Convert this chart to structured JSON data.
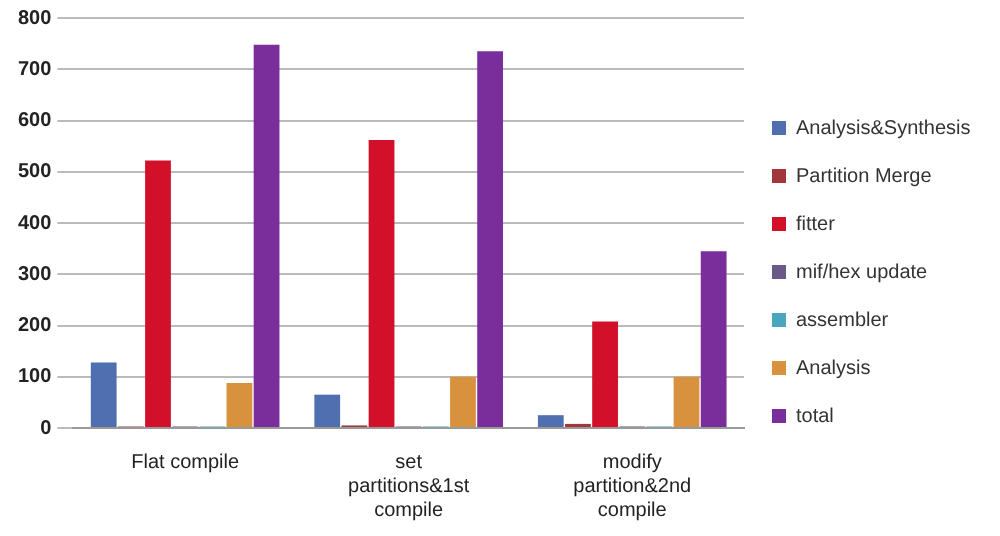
{
  "chart_data": {
    "type": "bar",
    "categories": [
      "Flat compile",
      "set partitions&1st compile",
      "modify partition&2nd compile"
    ],
    "series": [
      {
        "name": "Analysis&Synthesis",
        "color": "#4f6fb0",
        "values": [
          128,
          65,
          25
        ]
      },
      {
        "name": "Partition Merge",
        "color": "#a0373a",
        "values": [
          3,
          5,
          8
        ]
      },
      {
        "name": "fitter",
        "color": "#d2102a",
        "values": [
          522,
          562,
          208
        ]
      },
      {
        "name": "mif/hex update",
        "color": "#6a5a8a",
        "values": [
          3,
          3,
          3
        ]
      },
      {
        "name": "assembler",
        "color": "#4aa6c0",
        "values": [
          3,
          3,
          3
        ]
      },
      {
        "name": "Analysis",
        "color": "#d8913c",
        "values": [
          88,
          100,
          100
        ]
      },
      {
        "name": "total",
        "color": "#7a2e9c",
        "values": [
          748,
          735,
          345
        ]
      }
    ],
    "ylim": [
      0,
      800
    ],
    "yticks": [
      0,
      100,
      200,
      300,
      400,
      500,
      600,
      700,
      800
    ],
    "grid": "y",
    "legend": "right"
  }
}
